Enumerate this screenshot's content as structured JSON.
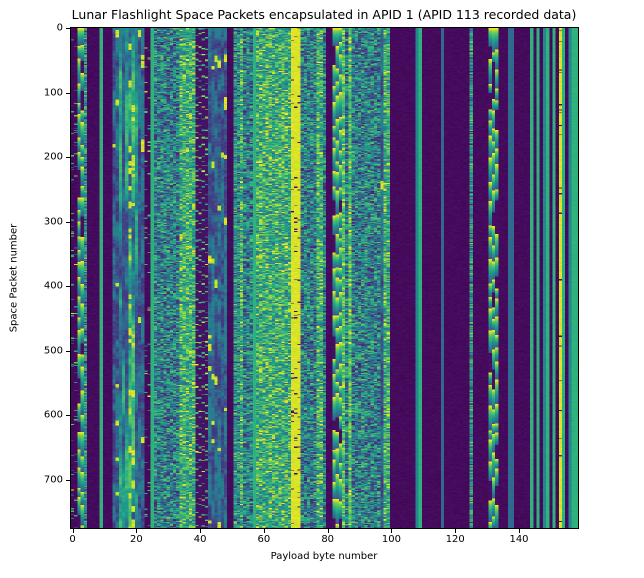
{
  "chart_data": {
    "type": "heatmap",
    "title": "Lunar Flashlight Space Packets encapsulated in APID 1 (APID 113 recorded data)",
    "xlabel": "Payload byte number",
    "ylabel": "Space Packet number",
    "x_ticks": [
      0,
      20,
      40,
      60,
      80,
      100,
      120,
      140
    ],
    "y_ticks": [
      0,
      100,
      200,
      300,
      400,
      500,
      600,
      700
    ],
    "n_cols": 159,
    "n_rows": 775,
    "x_range": [
      0,
      158
    ],
    "y_range": [
      0,
      774
    ],
    "colormap": "viridis",
    "colormap_stops": [
      [
        0.0,
        68,
        1,
        84
      ],
      [
        0.125,
        72,
        40,
        120
      ],
      [
        0.25,
        62,
        74,
        137
      ],
      [
        0.375,
        49,
        104,
        142
      ],
      [
        0.5,
        38,
        130,
        142
      ],
      [
        0.625,
        31,
        158,
        137
      ],
      [
        0.75,
        53,
        183,
        121
      ],
      [
        0.875,
        109,
        205,
        89
      ],
      [
        0.9375,
        180,
        222,
        44
      ],
      [
        1.0,
        253,
        231,
        37
      ]
    ],
    "grid": false,
    "legend": "none",
    "seed": 1337,
    "profiles": {
      "d": {
        "kind": "const",
        "v": 0.03,
        "jitter": 0.04
      },
      "ds": {
        "kind": "sparse",
        "base": 0.03,
        "jitter": 0.04,
        "p": 0.05,
        "lo": 0.4,
        "hi": 1.0
      },
      "gl": {
        "kind": "const",
        "v": 0.72,
        "jitter": 0.05
      },
      "tl": {
        "kind": "const",
        "v": 0.52,
        "jitter": 0.04
      },
      "bl": {
        "kind": "const",
        "v": 0.38,
        "jitter": 0.03
      },
      "yl": {
        "kind": "sparse",
        "base": 0.97,
        "jitter": 0.04,
        "p": 0.03,
        "lo": 0.0,
        "hi": 0.15
      },
      "sawY": {
        "kind": "saw",
        "min_run": 14,
        "max_run": 40,
        "hi": 1.0,
        "lo": 0.3,
        "p_dark": 0.15
      },
      "sm": {
        "kind": "walk",
        "lo": 0.2,
        "hi": 0.8,
        "step": 0.1,
        "p_blob": 0.0
      },
      "smy": {
        "kind": "walk",
        "lo": 0.25,
        "hi": 0.85,
        "step": 0.12,
        "p_blob": 0.02
      },
      "bn": {
        "kind": "walk",
        "lo": 0.18,
        "hi": 0.5,
        "step": 0.15,
        "p_blob": 0.005
      },
      "n": {
        "kind": "noise",
        "lo": 0.1,
        "hi": 0.85,
        "run": 2
      },
      "nh": {
        "kind": "noise",
        "lo": 0.4,
        "hi": 1.0,
        "run": 2
      },
      "yn": {
        "kind": "noise",
        "lo": 0.6,
        "hi": 1.0,
        "run": 3
      },
      "db": {
        "kind": "blocks",
        "dark": 0.04,
        "min_dark": 4,
        "max_dark": 18,
        "min_lit": 1,
        "max_lit": 3,
        "lo": 0.5,
        "hi": 1.0
      },
      "ts": {
        "kind": "speckle",
        "base": 0.55,
        "jitter": 0.15,
        "p_hi": 0.25,
        "hi": 0.9,
        "p_lo": 0.15,
        "lo": 0.1
      }
    },
    "columns_rle": [
      [
        "ds",
        2
      ],
      [
        "sawY",
        2
      ],
      [
        "ts",
        1
      ],
      [
        "d",
        4
      ],
      [
        "gl",
        1
      ],
      [
        "d",
        3
      ],
      [
        "bn",
        2
      ],
      [
        "sm",
        3
      ],
      [
        "smy",
        2
      ],
      [
        "sm",
        1
      ],
      [
        "bn",
        2
      ],
      [
        "ds",
        2
      ],
      [
        "gl",
        1
      ],
      [
        "n",
        8
      ],
      [
        "nh",
        5
      ],
      [
        "db",
        4
      ],
      [
        "bn",
        6
      ],
      [
        "d",
        2
      ],
      [
        "ts",
        2
      ],
      [
        "nh",
        1
      ],
      [
        "n",
        3
      ],
      [
        "gl",
        1
      ],
      [
        "nh",
        11
      ],
      [
        "yl",
        3
      ],
      [
        "n",
        5
      ],
      [
        "nh",
        2
      ],
      [
        "n",
        1
      ],
      [
        "d",
        2
      ],
      [
        "sawY",
        3
      ],
      [
        "yn",
        1
      ],
      [
        "n",
        1
      ],
      [
        "yn",
        1
      ],
      [
        "n",
        9
      ],
      [
        "bn",
        1
      ],
      [
        "nh",
        2
      ],
      [
        "d",
        8
      ],
      [
        "tl",
        1
      ],
      [
        "gl",
        1
      ],
      [
        "d",
        6
      ],
      [
        "bl",
        1
      ],
      [
        "d",
        8
      ],
      [
        "ts",
        1
      ],
      [
        "d",
        5
      ],
      [
        "sawY",
        3
      ],
      [
        "d",
        3
      ],
      [
        "bl",
        2
      ],
      [
        "d",
        5
      ],
      [
        "gl",
        1
      ],
      [
        "d",
        1
      ],
      [
        "gl",
        1
      ],
      [
        "d",
        1
      ],
      [
        "tl",
        1
      ],
      [
        "gl",
        1
      ],
      [
        "d",
        1
      ],
      [
        "gl",
        1
      ],
      [
        "d",
        1
      ],
      [
        "yl",
        1
      ],
      [
        "gl",
        1
      ],
      [
        "d",
        1
      ],
      [
        "tl",
        1
      ],
      [
        "gl",
        2
      ]
    ]
  }
}
